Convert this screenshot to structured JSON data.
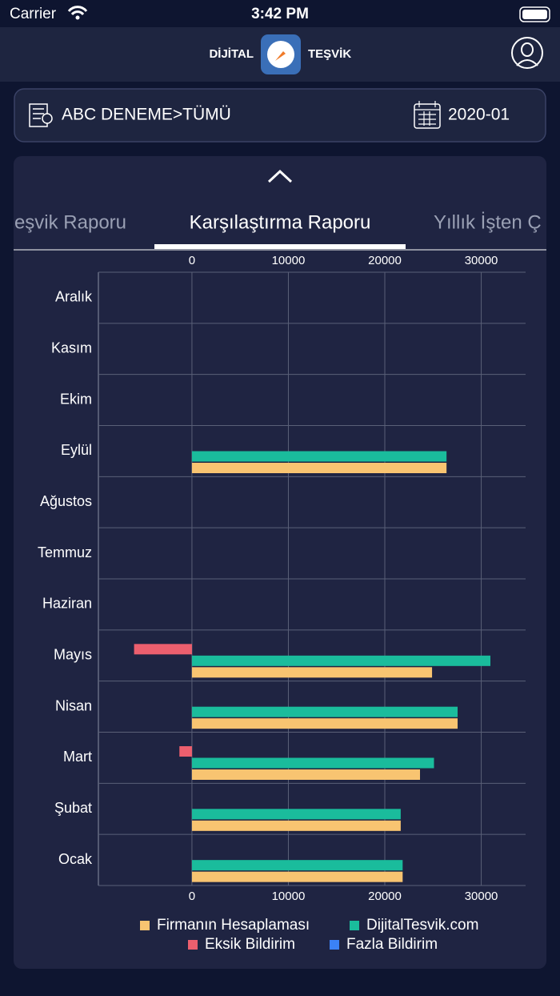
{
  "status_bar": {
    "carrier": "Carrier",
    "time": "3:42 PM"
  },
  "header": {
    "left": "DİJİTAL",
    "right": "TEŞVİK"
  },
  "filter": {
    "company": "ABC DENEME>TÜMÜ",
    "period": "2020-01"
  },
  "tabs": [
    "eşvik Raporu",
    "Karşılaştırma Raporu",
    "Yıllık İşten Ç"
  ],
  "chart_data": {
    "type": "hbar",
    "categories": [
      "Aralık",
      "Kasım",
      "Ekim",
      "Eylül",
      "Ağustos",
      "Temmuz",
      "Haziran",
      "Mayıs",
      "Nisan",
      "Mart",
      "Şubat",
      "Ocak"
    ],
    "series": [
      {
        "name": "Firmanın Hesaplaması",
        "color": "#f8c471",
        "values": [
          null,
          null,
          null,
          26400,
          null,
          null,
          null,
          24900,
          27550,
          23650,
          21650,
          21850
        ]
      },
      {
        "name": "DijitalTesvik.com",
        "color": "#1abc9c",
        "values": [
          null,
          null,
          null,
          26400,
          null,
          null,
          null,
          30950,
          27550,
          25100,
          21650,
          21850
        ]
      },
      {
        "name": "Eksik Bildirim",
        "color": "#ec5f6e",
        "values": [
          null,
          null,
          null,
          null,
          null,
          null,
          null,
          -6000,
          null,
          -1300,
          null,
          null
        ]
      },
      {
        "name": "Fazla Bildirim",
        "color": "#3b82f6",
        "values": [
          null,
          null,
          null,
          null,
          null,
          null,
          null,
          null,
          null,
          null,
          null,
          null
        ]
      }
    ],
    "xlim": [
      -9700,
      34600
    ],
    "xticks": [
      0,
      10000,
      20000,
      30000
    ],
    "grid": true
  }
}
